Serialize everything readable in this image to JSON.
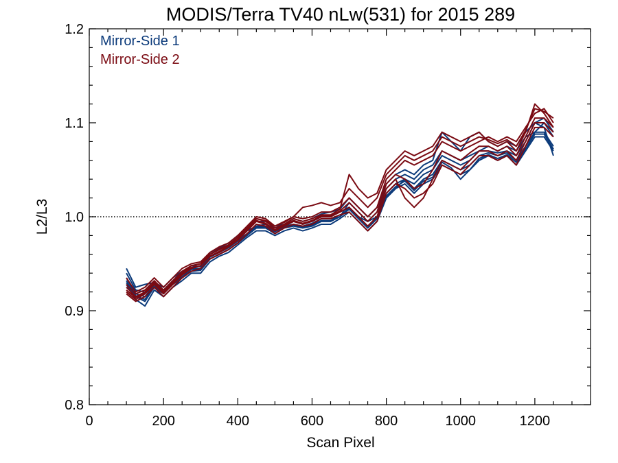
{
  "chart_data": {
    "type": "line",
    "title": "MODIS/Terra TV40 nLw(531) for 2015 289",
    "xlabel": "Scan Pixel",
    "ylabel": "L2/L3",
    "xlim": [
      0,
      1350
    ],
    "ylim": [
      0.8,
      1.2
    ],
    "x_ticks": [
      0,
      200,
      400,
      600,
      800,
      1000,
      1200
    ],
    "x_tick_labels": [
      "0",
      "200",
      "400",
      "600",
      "800",
      "1000",
      "1200"
    ],
    "y_ticks": [
      0.8,
      0.9,
      1.0,
      1.1,
      1.2
    ],
    "y_tick_labels": [
      "0.8",
      "0.9",
      "1.0",
      "1.1",
      "1.2"
    ],
    "reference_line": {
      "y": 1.0,
      "style": "dotted"
    },
    "legend_position": "top-left",
    "colors": {
      "mirror_side_1": "#0b3a7a",
      "mirror_side_2": "#7a0a12"
    },
    "x": [
      100,
      125,
      150,
      175,
      200,
      225,
      250,
      275,
      300,
      325,
      350,
      375,
      400,
      425,
      450,
      475,
      500,
      525,
      550,
      575,
      600,
      625,
      650,
      675,
      700,
      725,
      750,
      775,
      800,
      825,
      850,
      875,
      900,
      925,
      950,
      975,
      1000,
      1025,
      1050,
      1075,
      1100,
      1125,
      1150,
      1175,
      1200,
      1225,
      1250
    ],
    "series": [
      {
        "name": "Mirror-Side 1",
        "color": "#0b3a7a",
        "lines": [
          [
            0.945,
            0.925,
            0.928,
            0.93,
            0.925,
            0.935,
            0.942,
            0.945,
            0.948,
            0.96,
            0.965,
            0.97,
            0.978,
            0.985,
            0.99,
            0.992,
            0.988,
            0.99,
            0.995,
            0.992,
            0.995,
            1.0,
            1.0,
            1.005,
            1.01,
            1.0,
            0.995,
            1.005,
            1.03,
            1.04,
            1.045,
            1.04,
            1.05,
            1.055,
            1.07,
            1.065,
            1.06,
            1.065,
            1.07,
            1.075,
            1.07,
            1.075,
            1.07,
            1.085,
            1.09,
            1.1,
            1.085
          ],
          [
            0.935,
            0.918,
            0.915,
            0.928,
            0.92,
            0.93,
            0.938,
            0.945,
            0.945,
            0.958,
            0.963,
            0.968,
            0.975,
            0.982,
            0.99,
            0.99,
            0.985,
            0.99,
            0.992,
            0.99,
            0.993,
            0.998,
            0.998,
            1.0,
            1.015,
            1.005,
            0.995,
            1.0,
            1.02,
            1.03,
            1.04,
            1.035,
            1.045,
            1.05,
            1.065,
            1.06,
            1.055,
            1.06,
            1.07,
            1.07,
            1.068,
            1.07,
            1.065,
            1.08,
            1.1,
            1.095,
            1.065
          ],
          [
            0.93,
            0.915,
            0.91,
            0.925,
            0.918,
            0.928,
            0.935,
            0.942,
            0.943,
            0.955,
            0.96,
            0.965,
            0.972,
            0.98,
            0.988,
            0.988,
            0.982,
            0.988,
            0.99,
            0.988,
            0.99,
            0.995,
            0.995,
            1.0,
            1.01,
            1.0,
            0.99,
            1.0,
            1.025,
            1.035,
            1.04,
            1.03,
            1.04,
            1.045,
            1.06,
            1.055,
            1.05,
            1.055,
            1.065,
            1.068,
            1.065,
            1.068,
            1.06,
            1.075,
            1.09,
            1.09,
            1.075
          ],
          [
            0.928,
            0.912,
            0.905,
            0.922,
            0.915,
            0.925,
            0.932,
            0.94,
            0.94,
            0.952,
            0.958,
            0.962,
            0.97,
            0.978,
            0.985,
            0.985,
            0.98,
            0.985,
            0.988,
            0.985,
            0.988,
            0.992,
            0.992,
            0.998,
            1.005,
            0.995,
            0.985,
            0.995,
            1.02,
            1.03,
            1.035,
            1.025,
            1.035,
            1.04,
            1.055,
            1.05,
            1.045,
            1.05,
            1.06,
            1.065,
            1.06,
            1.065,
            1.055,
            1.07,
            1.085,
            1.085,
            1.07
          ],
          [
            0.94,
            0.922,
            0.92,
            0.93,
            0.922,
            0.932,
            0.94,
            0.948,
            0.947,
            0.962,
            0.967,
            0.972,
            0.98,
            0.988,
            0.995,
            0.995,
            0.99,
            0.992,
            0.998,
            0.995,
            0.998,
            1.003,
            1.005,
            1.008,
            1.02,
            1.01,
            1.0,
            1.01,
            1.035,
            1.045,
            1.05,
            1.045,
            1.055,
            1.06,
            1.09,
            1.08,
            1.07,
            1.085,
            1.09,
            1.08,
            1.075,
            1.08,
            1.075,
            1.09,
            1.1,
            1.105,
            1.09
          ],
          [
            0.932,
            0.916,
            0.912,
            0.926,
            0.919,
            0.929,
            0.936,
            0.944,
            0.944,
            0.957,
            0.962,
            0.967,
            0.974,
            0.981,
            0.989,
            0.989,
            0.984,
            0.989,
            0.991,
            0.989,
            0.991,
            0.996,
            0.996,
            1.0,
            1.008,
            0.998,
            0.988,
            0.998,
            1.022,
            1.032,
            1.038,
            1.028,
            1.038,
            1.042,
            1.058,
            1.052,
            1.04,
            1.05,
            1.062,
            1.066,
            1.062,
            1.066,
            1.058,
            1.072,
            1.088,
            1.088,
            1.072
          ]
        ]
      },
      {
        "name": "Mirror-Side 2",
        "color": "#7a0a12",
        "lines": [
          [
            0.935,
            0.92,
            0.925,
            0.935,
            0.925,
            0.935,
            0.945,
            0.95,
            0.952,
            0.962,
            0.968,
            0.972,
            0.98,
            0.99,
            1.0,
            0.998,
            0.99,
            0.995,
            1.0,
            0.998,
            1.0,
            1.005,
            1.005,
            1.01,
            1.02,
            1.01,
            1.0,
            1.01,
            1.04,
            1.05,
            1.06,
            1.055,
            1.06,
            1.065,
            1.08,
            1.075,
            1.07,
            1.075,
            1.08,
            1.085,
            1.08,
            1.085,
            1.08,
            1.095,
            1.11,
            1.115,
            1.1
          ],
          [
            0.925,
            0.915,
            0.92,
            0.93,
            0.92,
            0.93,
            0.94,
            0.948,
            0.95,
            0.96,
            0.965,
            0.97,
            0.978,
            0.988,
            0.998,
            0.995,
            0.988,
            0.992,
            0.998,
            0.995,
            0.998,
            1.002,
            1.002,
            1.008,
            1.045,
            1.03,
            1.02,
            1.025,
            1.05,
            1.06,
            1.07,
            1.065,
            1.07,
            1.075,
            1.09,
            1.085,
            1.08,
            1.085,
            1.09,
            1.08,
            1.075,
            1.08,
            1.07,
            1.09,
            1.12,
            1.11,
            1.095
          ],
          [
            0.92,
            0.912,
            0.918,
            0.928,
            0.918,
            0.928,
            0.938,
            0.945,
            0.948,
            0.958,
            0.962,
            0.968,
            0.975,
            0.985,
            0.995,
            0.992,
            0.985,
            0.99,
            0.995,
            0.992,
            0.995,
            1.0,
            1.0,
            1.005,
            1.01,
            1.0,
            0.99,
            1.0,
            1.03,
            1.04,
            1.02,
            1.01,
            1.02,
            1.04,
            1.06,
            1.055,
            1.05,
            1.06,
            1.07,
            1.07,
            1.065,
            1.07,
            1.06,
            1.08,
            1.1,
            1.1,
            1.09
          ],
          [
            0.918,
            0.91,
            0.915,
            0.925,
            0.915,
            0.925,
            0.935,
            0.942,
            0.945,
            0.955,
            0.96,
            0.965,
            0.972,
            0.982,
            0.992,
            0.99,
            0.982,
            0.988,
            0.992,
            0.99,
            0.992,
            0.998,
            0.998,
            1.002,
            1.005,
            0.995,
            0.985,
            0.995,
            1.025,
            1.035,
            1.03,
            1.02,
            1.025,
            1.035,
            1.055,
            1.05,
            1.045,
            1.055,
            1.065,
            1.065,
            1.06,
            1.065,
            1.055,
            1.075,
            1.095,
            1.095,
            1.085
          ],
          [
            0.928,
            0.918,
            0.922,
            0.932,
            0.922,
            0.932,
            0.942,
            0.948,
            0.95,
            0.96,
            0.966,
            0.97,
            0.978,
            0.988,
            0.998,
            0.996,
            0.99,
            0.994,
            1.0,
            1.01,
            1.012,
            1.015,
            1.012,
            1.015,
            1.03,
            1.02,
            1.01,
            1.02,
            1.045,
            1.055,
            1.065,
            1.06,
            1.065,
            1.07,
            1.085,
            1.08,
            1.075,
            1.08,
            1.085,
            1.082,
            1.078,
            1.082,
            1.075,
            1.092,
            1.115,
            1.112,
            1.105
          ],
          [
            0.922,
            0.914,
            0.919,
            0.929,
            0.919,
            0.929,
            0.939,
            0.946,
            0.948,
            0.958,
            0.963,
            0.969,
            0.976,
            0.986,
            0.996,
            0.993,
            0.986,
            0.991,
            0.996,
            0.993,
            0.996,
            1.001,
            1.001,
            1.006,
            1.015,
            1.005,
            0.995,
            1.005,
            1.035,
            1.045,
            1.04,
            1.03,
            1.035,
            1.05,
            1.07,
            1.065,
            1.06,
            1.068,
            1.075,
            1.075,
            1.07,
            1.075,
            1.065,
            1.085,
            1.105,
            1.105,
            1.095
          ]
        ]
      }
    ]
  }
}
